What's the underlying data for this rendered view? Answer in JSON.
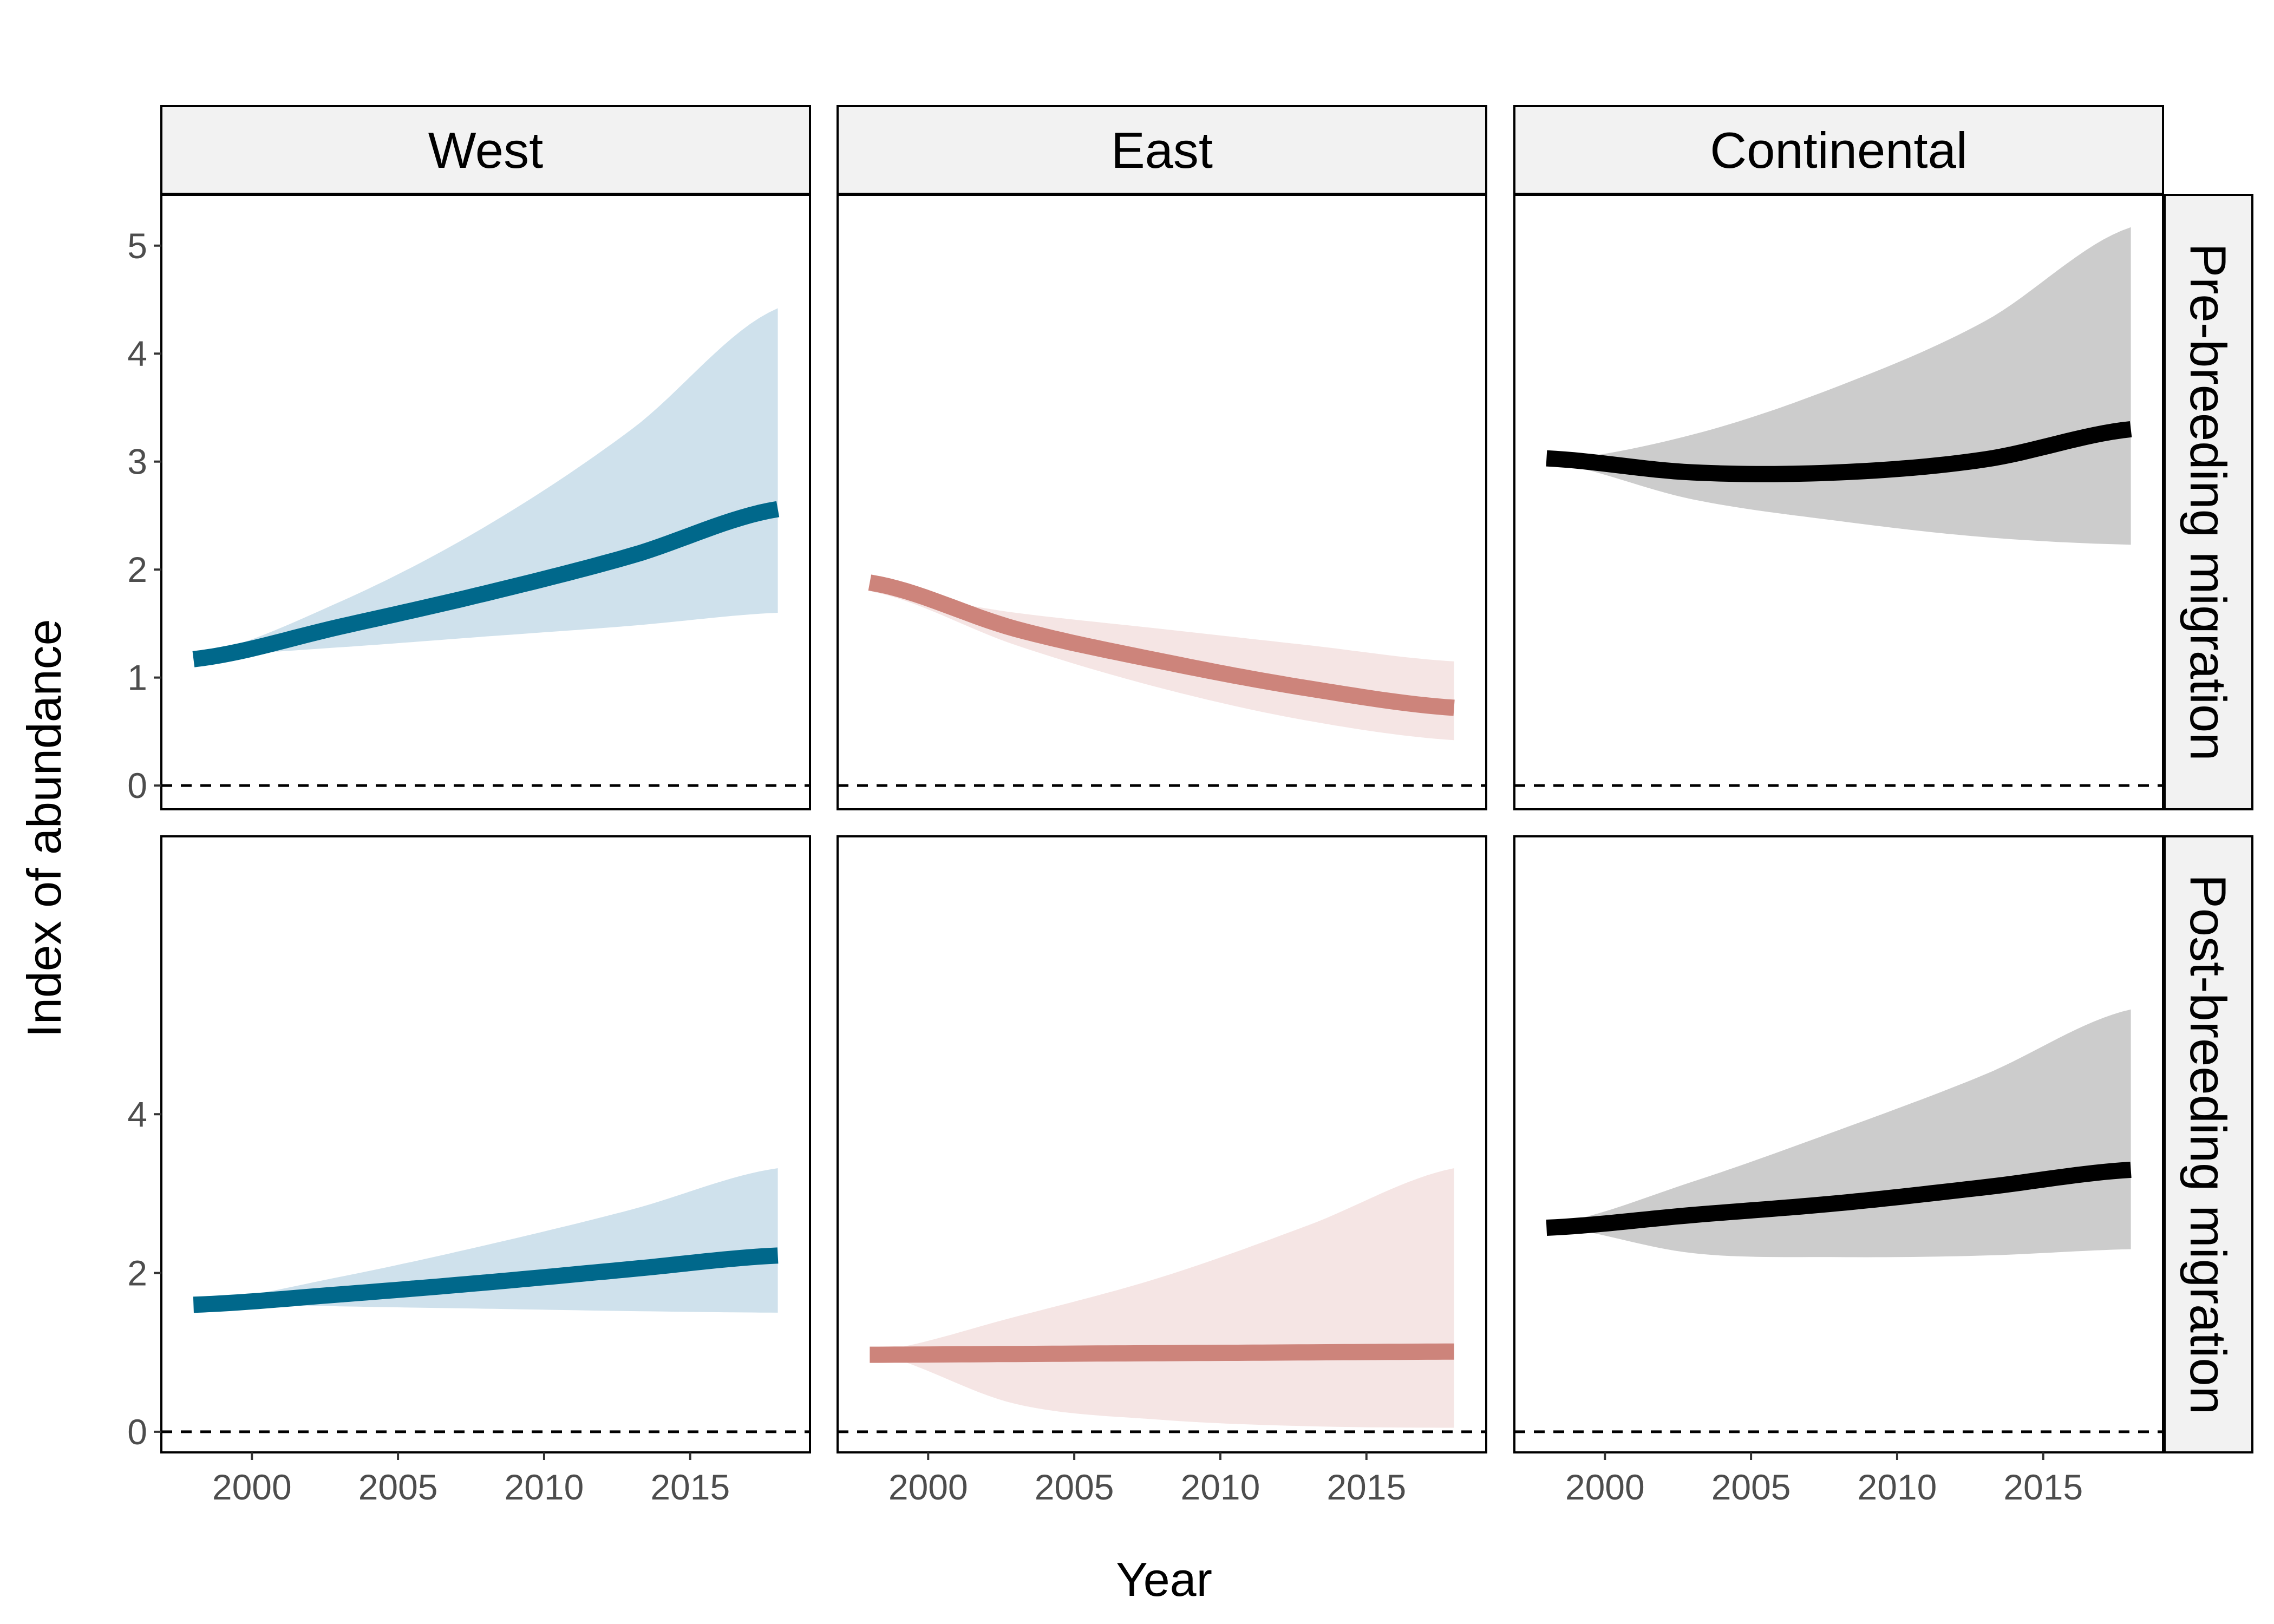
{
  "chart_data": {
    "type": "area",
    "xlabel": "Year",
    "ylabel": "Index of abundance",
    "columns": [
      "West",
      "East",
      "Continental"
    ],
    "rows": [
      "Pre-breeding migration",
      "Post-breeding migration"
    ],
    "x_ticks": [
      2000,
      2005,
      2010,
      2015
    ],
    "x_range": [
      1998,
      2018
    ],
    "xlim": [
      1996.9,
      2019.1
    ],
    "grid": false,
    "reference_line": 0,
    "colors": {
      "West": "#00688B",
      "East": "#CD847B",
      "Continental": "#000000"
    },
    "band_colors": {
      "West": "#CFE1EC",
      "East": "#F5E5E4",
      "Continental": "#CCCCCC"
    },
    "row_scales": [
      {
        "ylim": [
          -0.22,
          5.47
        ],
        "y_ticks": [
          0,
          1,
          2,
          3,
          4,
          5
        ]
      },
      {
        "ylim": [
          -0.26,
          7.5
        ],
        "y_ticks": [
          0,
          2,
          4
        ]
      }
    ],
    "panels": [
      {
        "column": "West",
        "row": "Pre-breeding migration",
        "x": [
          1998,
          2003,
          2008,
          2013,
          2018
        ],
        "mean": [
          1.17,
          1.47,
          1.78,
          2.13,
          2.56
        ],
        "lower": [
          1.2,
          1.28,
          1.38,
          1.48,
          1.6
        ],
        "upper": [
          1.2,
          1.7,
          2.4,
          3.3,
          4.42
        ]
      },
      {
        "column": "East",
        "row": "Pre-breeding migration",
        "x": [
          1998,
          2003,
          2008,
          2013,
          2018
        ],
        "mean": [
          1.88,
          1.45,
          1.15,
          0.9,
          0.72
        ],
        "lower": [
          1.8,
          1.3,
          0.9,
          0.6,
          0.42
        ],
        "upper": [
          1.8,
          1.6,
          1.45,
          1.3,
          1.15
        ]
      },
      {
        "column": "Continental",
        "row": "Pre-breeding migration",
        "x": [
          1998,
          2003,
          2008,
          2013,
          2018
        ],
        "mean": [
          3.03,
          2.9,
          2.9,
          3.02,
          3.3
        ],
        "lower": [
          3.0,
          2.65,
          2.45,
          2.3,
          2.23
        ],
        "upper": [
          3.0,
          3.25,
          3.7,
          4.3,
          5.17
        ]
      },
      {
        "column": "West",
        "row": "Post-breeding migration",
        "x": [
          1998,
          2003,
          2008,
          2013,
          2018
        ],
        "mean": [
          1.6,
          1.73,
          1.88,
          2.05,
          2.22
        ],
        "lower": [
          1.62,
          1.58,
          1.55,
          1.52,
          1.5
        ],
        "upper": [
          1.62,
          1.95,
          2.35,
          2.8,
          3.32
        ]
      },
      {
        "column": "East",
        "row": "Post-breeding migration",
        "x": [
          1998,
          2003,
          2008,
          2013,
          2018
        ],
        "mean": [
          0.97,
          0.98,
          0.99,
          1.0,
          1.01
        ],
        "lower": [
          1.0,
          0.35,
          0.15,
          0.07,
          0.05
        ],
        "upper": [
          1.0,
          1.45,
          1.95,
          2.6,
          3.32
        ]
      },
      {
        "column": "Continental",
        "row": "Post-breeding migration",
        "x": [
          1998,
          2003,
          2008,
          2013,
          2018
        ],
        "mean": [
          2.57,
          2.73,
          2.88,
          3.08,
          3.3
        ],
        "lower": [
          2.6,
          2.25,
          2.2,
          2.22,
          2.3
        ],
        "upper": [
          2.6,
          3.15,
          3.8,
          4.5,
          5.32
        ]
      }
    ]
  }
}
